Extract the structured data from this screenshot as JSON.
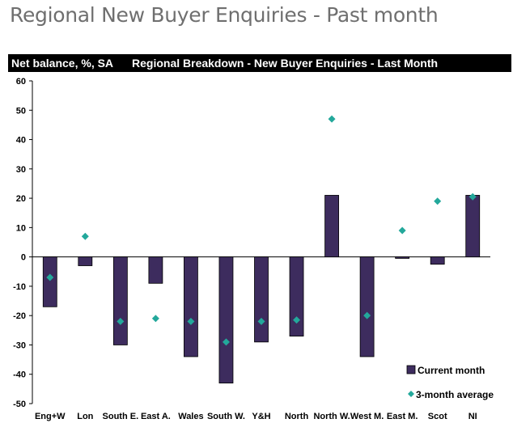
{
  "page": {
    "title": "Regional New Buyer Enquiries - Past month"
  },
  "header_bar": {
    "left_label": "Net balance, %, SA",
    "center_title": "Regional Breakdown - New Buyer Enquiries - Last Month",
    "background": "#000000",
    "text_color": "#ffffff"
  },
  "chart_data": {
    "type": "bar",
    "title": "Regional Breakdown - New Buyer Enquiries - Last Month",
    "ylabel": "Net balance, %, SA",
    "xlabel": "",
    "ylim": [
      -50,
      60
    ],
    "yticks": [
      60,
      50,
      40,
      30,
      20,
      10,
      0,
      -10,
      -20,
      -30,
      -40,
      -50
    ],
    "categories": [
      "Eng+W",
      "Lon",
      "South E.",
      "East A.",
      "Wales",
      "South W.",
      "Y&H",
      "North",
      "North W.",
      "West M.",
      "East M.",
      "Scot",
      "NI"
    ],
    "series": [
      {
        "name": "Current month",
        "type": "bar",
        "color": "#3d2c5e",
        "values": [
          -17,
          -3,
          -30,
          -9,
          -34,
          -43,
          -29,
          -27,
          21,
          -34,
          -0.5,
          -2.5,
          21
        ]
      },
      {
        "name": "3-month average",
        "type": "scatter",
        "marker": "diamond",
        "color": "#23a89b",
        "values": [
          -7,
          7,
          -22,
          -21,
          -22,
          -29,
          -22,
          -21.5,
          47,
          -20,
          9,
          19,
          20.5
        ]
      }
    ],
    "legend": {
      "position": "bottom-right",
      "entries": [
        "Current month",
        "3-month average"
      ]
    },
    "grid": false
  }
}
